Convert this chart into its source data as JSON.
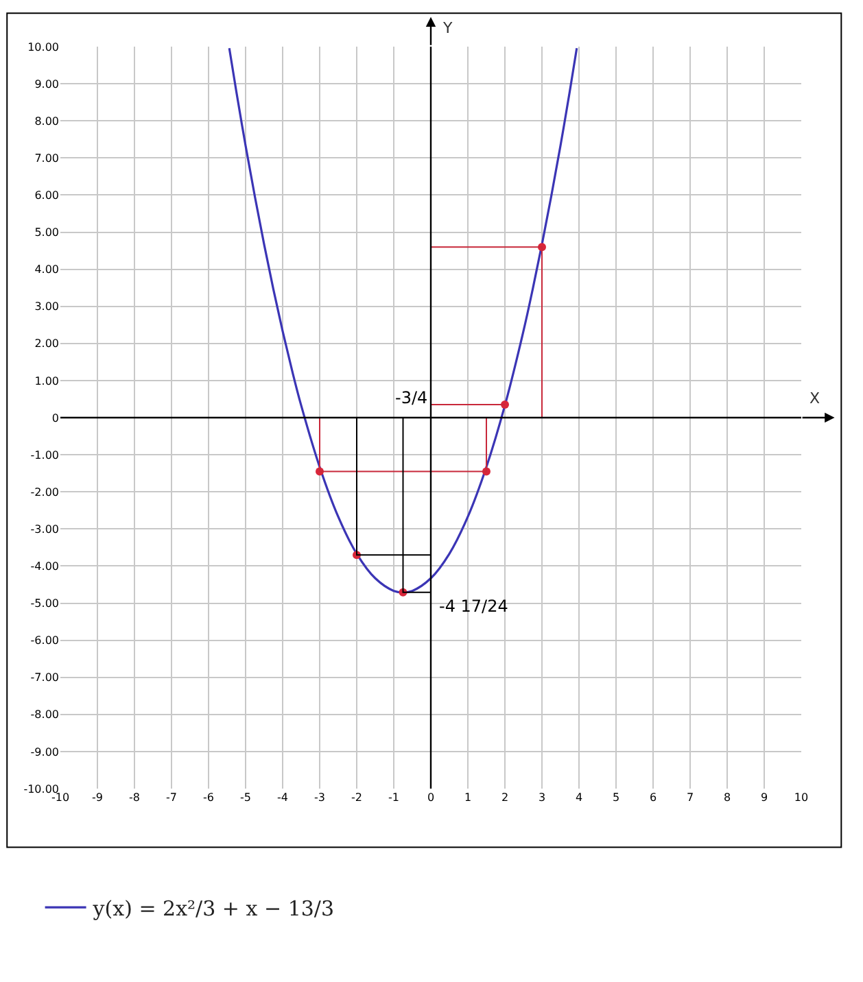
{
  "chart_data": {
    "type": "line",
    "xlabel": "X",
    "ylabel": "Y",
    "xlim": [
      -10,
      10
    ],
    "ylim": [
      -10,
      10
    ],
    "xticks": [
      -10,
      -9,
      -8,
      -7,
      -6,
      -5,
      -4,
      -3,
      -2,
      -1,
      0,
      1,
      2,
      3,
      4,
      5,
      6,
      7,
      8,
      9,
      10
    ],
    "yticks": [
      {
        "value": 10,
        "label": "10.00"
      },
      {
        "value": 9,
        "label": "9.00"
      },
      {
        "value": 8,
        "label": "8.00"
      },
      {
        "value": 7,
        "label": "7.00"
      },
      {
        "value": 6,
        "label": "6.00"
      },
      {
        "value": 5,
        "label": "5.00"
      },
      {
        "value": 4,
        "label": "4.00"
      },
      {
        "value": 3,
        "label": "3.00"
      },
      {
        "value": 2,
        "label": "2.00"
      },
      {
        "value": 1,
        "label": "1.00"
      },
      0,
      {
        "value": -1,
        "label": "-1.00"
      },
      {
        "value": -2,
        "label": "-2.00"
      },
      {
        "value": -3,
        "label": "-3.00"
      },
      {
        "value": -4,
        "label": "-4.00"
      },
      {
        "value": -5,
        "label": "-5.00"
      },
      {
        "value": -6,
        "label": "-6.00"
      },
      {
        "value": -7,
        "label": "-7.00"
      },
      {
        "value": -8,
        "label": "-8.00"
      },
      {
        "value": -9,
        "label": "-9.00"
      },
      {
        "value": -10,
        "label": "-10.00"
      }
    ],
    "grid": true,
    "legend": "bottom",
    "marker": "none",
    "line_style": "solid",
    "series": [
      {
        "name": "y(x) = 2x²/3 + x − 13/3",
        "color": "#3b35b5",
        "x": [
          -5.44,
          -5.25,
          -5,
          -4.75,
          -4.5,
          -4.25,
          -4,
          -3.75,
          -3.5,
          -3,
          -2.5,
          -2,
          -1.5,
          -1,
          -0.75,
          -0.5,
          0,
          0.5,
          1,
          1.5,
          2,
          2.5,
          2.75,
          3,
          3.25,
          3.5,
          3.75,
          3.94
        ],
        "values": [
          9.96,
          8.79,
          7.33,
          5.96,
          4.67,
          3.46,
          2.33,
          1.29,
          0.33,
          -1.33,
          -2.67,
          -3.67,
          -4.33,
          -4.67,
          -4.71,
          -4.67,
          -4.33,
          -3.67,
          -2.67,
          -1.33,
          0.33,
          2.33,
          3.46,
          4.67,
          5.96,
          7.33,
          8.79,
          9.96
        ]
      },
      {
        "type": "scatter",
        "marker": "circle",
        "color": "#d9263a",
        "x": [
          -3,
          -2,
          -0.75,
          1.5,
          2,
          3
        ],
        "values": [
          -1.45,
          -3.7,
          -4.71,
          -1.45,
          0.35,
          4.6
        ]
      },
      {
        "color": "#c8283a",
        "x": [
          -3,
          -3,
          1.5,
          1.5
        ],
        "values": [
          0,
          -1.45,
          -1.45,
          0
        ]
      },
      {
        "color": "#c8283a",
        "x": [
          0,
          2
        ],
        "values": [
          0.35,
          0.35
        ]
      },
      {
        "color": "#c8283a",
        "x": [
          0,
          3,
          3
        ],
        "values": [
          4.6,
          4.6,
          0
        ]
      },
      {
        "color": "#000000",
        "x": [
          -2,
          -2,
          0
        ],
        "values": [
          0,
          -3.7,
          -3.7
        ]
      },
      {
        "color": "#000000",
        "x": [
          -0.75,
          -0.75,
          0
        ],
        "values": [
          0,
          -4.71,
          -4.71
        ]
      }
    ],
    "annotations": [
      {
        "text": "-3/4",
        "x": 0,
        "y": 0.35
      },
      {
        "text": "-4 17/24",
        "x": 0,
        "y": -4.71
      }
    ]
  }
}
